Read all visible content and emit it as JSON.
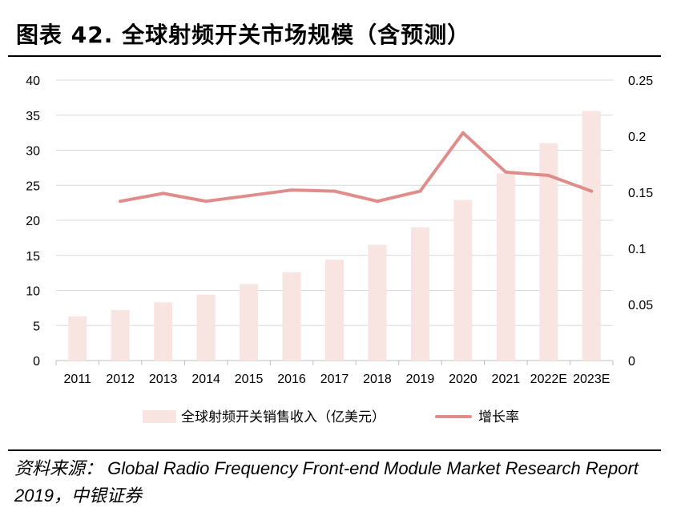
{
  "figure": {
    "label": "图表 42.",
    "title": "全球射频开关市场规模（含预测）"
  },
  "source": {
    "prefix": "资料来源：",
    "text_line1": "Global Radio Frequency Front-end Module Market Research Report",
    "text_line2": "2019，中银证券"
  },
  "chart_data": {
    "type": "bar",
    "categories": [
      "2011",
      "2012",
      "2013",
      "2014",
      "2015",
      "2016",
      "2017",
      "2018",
      "2019",
      "2020",
      "2021",
      "2022E",
      "2023E"
    ],
    "series": [
      {
        "name": "全球射频开关销售收入（亿美元）",
        "type": "bar",
        "axis": "left",
        "color": "#f8e4e0",
        "values": [
          6.3,
          7.2,
          8.3,
          9.4,
          10.9,
          12.6,
          14.4,
          16.5,
          19.0,
          22.9,
          26.7,
          31.0,
          35.6
        ]
      },
      {
        "name": "增长率",
        "type": "line",
        "axis": "right",
        "color": "#e08c8a",
        "values": [
          null,
          0.142,
          0.149,
          0.142,
          0.147,
          0.152,
          0.151,
          0.142,
          0.151,
          0.203,
          0.168,
          0.165,
          0.151
        ]
      }
    ],
    "y_left": {
      "min": 0,
      "max": 40,
      "ticks": [
        "0",
        "5",
        "10",
        "15",
        "20",
        "25",
        "30",
        "35",
        "40"
      ]
    },
    "y_right": {
      "min": 0,
      "max": 0.25,
      "ticks": [
        "0",
        "0.05",
        "0.1",
        "0.15",
        "0.2",
        "0.25"
      ]
    },
    "grid": true,
    "legend": "bottom-center",
    "xlabel": "",
    "ylabel": ""
  }
}
